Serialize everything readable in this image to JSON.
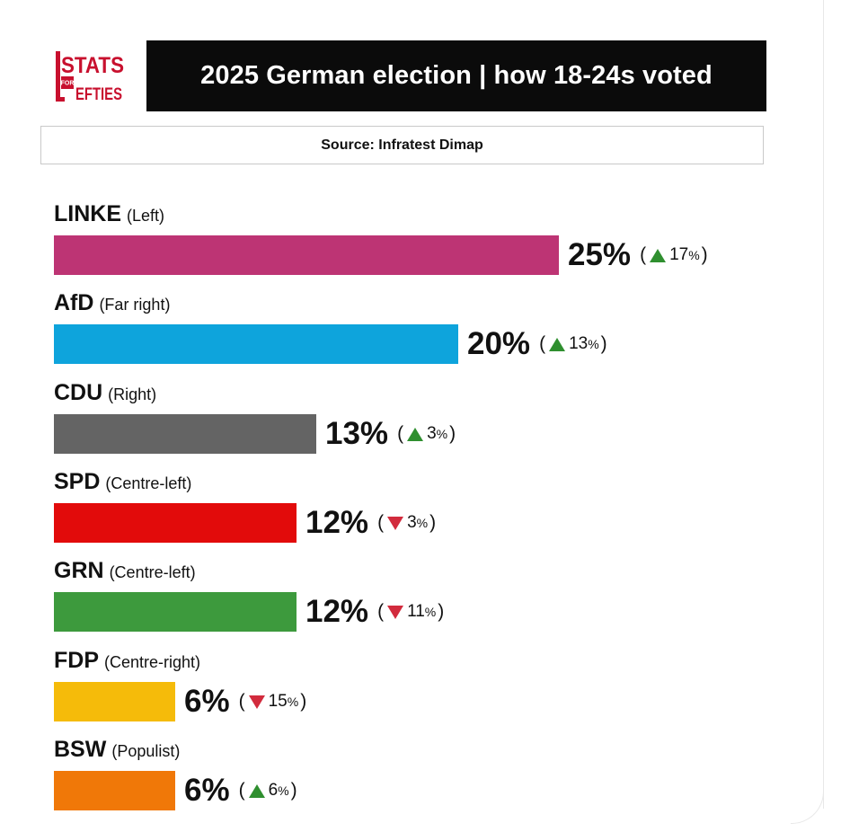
{
  "logo": {
    "line1": "STATS",
    "line2": "FOR",
    "line3": "LEFTIES"
  },
  "header": {
    "title": "2025 German election | how 18-24s voted"
  },
  "source": {
    "text": "Source: Infratest Dimap"
  },
  "colors": {
    "header_bg": "#0b0b0b",
    "up_arrow": "#2f8f2f",
    "down_arrow": "#d22b3d"
  },
  "chart_data": {
    "type": "bar",
    "orientation": "horizontal",
    "title": "2025 German election | how 18-24s voted",
    "source": "Source: Infratest Dimap",
    "categories": [
      "LINKE",
      "AfD",
      "CDU",
      "SPD",
      "GRN",
      "FDP",
      "BSW"
    ],
    "values": [
      25,
      20,
      13,
      12,
      12,
      6,
      6
    ],
    "unit": "%",
    "parties": [
      {
        "name": "LINKE",
        "desc": "(Left)",
        "value": 25,
        "pct_label": "25%",
        "change": 17,
        "change_dir": "up",
        "color": "#bd3474"
      },
      {
        "name": "AfD",
        "desc": "(Far right)",
        "value": 20,
        "pct_label": "20%",
        "change": 13,
        "change_dir": "up",
        "color": "#0ea4dc"
      },
      {
        "name": "CDU",
        "desc": "(Right)",
        "value": 13,
        "pct_label": "13%",
        "change": 3,
        "change_dir": "up",
        "color": "#646464"
      },
      {
        "name": "SPD",
        "desc": "(Centre-left)",
        "value": 12,
        "pct_label": "12%",
        "change": 3,
        "change_dir": "down",
        "color": "#e20b0b"
      },
      {
        "name": "GRN",
        "desc": "(Centre-left)",
        "value": 12,
        "pct_label": "12%",
        "change": 11,
        "change_dir": "down",
        "color": "#3d9a3d"
      },
      {
        "name": "FDP",
        "desc": "(Centre-right)",
        "value": 6,
        "pct_label": "6%",
        "change": 15,
        "change_dir": "down",
        "color": "#f5bb0a"
      },
      {
        "name": "BSW",
        "desc": "(Populist)",
        "value": 6,
        "pct_label": "6%",
        "change": 6,
        "change_dir": "up",
        "color": "#f07808"
      }
    ],
    "xlim": [
      0,
      25
    ]
  }
}
